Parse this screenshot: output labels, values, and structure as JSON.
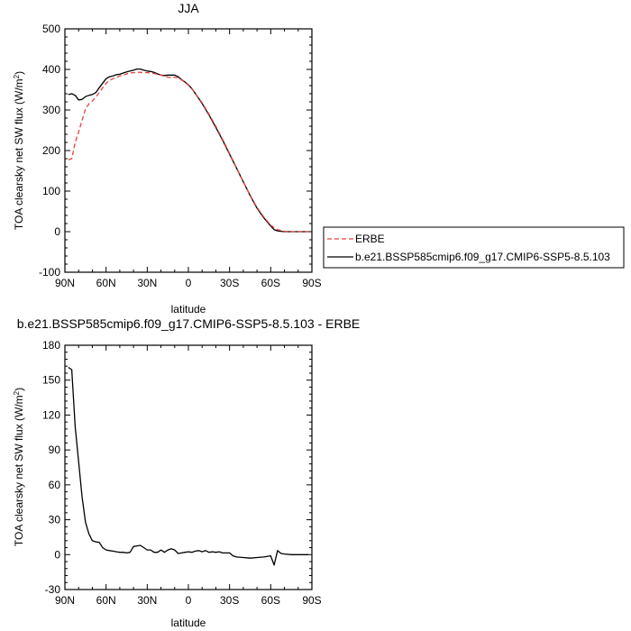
{
  "chart_data": [
    {
      "type": "line",
      "title": "JJA",
      "xlabel": "latitude",
      "ylabel": "TOA clearsky net SW flux (W/m",
      "ylabel_sup": "2",
      "ylabel_close": ")",
      "xlim": [
        90,
        -90
      ],
      "ylim": [
        -100,
        500
      ],
      "xticks": [
        90,
        60,
        30,
        0,
        -30,
        -60,
        -90
      ],
      "xtick_labels": [
        "90N",
        "60N",
        "30N",
        "0",
        "30S",
        "60S",
        "90S"
      ],
      "yticks": [
        -100,
        0,
        100,
        200,
        300,
        400,
        500
      ],
      "ytick_labels": [
        "-100",
        "0",
        "100",
        "200",
        "300",
        "400",
        "500"
      ],
      "legend": {
        "placement": "right",
        "items": [
          "ERBE",
          "b.e21.BSSP585cmip6.f09_g17.CMIP6-SSP5-8.5.103"
        ]
      },
      "series": [
        {
          "name": "ERBE",
          "color": "#e8413c",
          "dash": "dashed",
          "x": [
            87.5,
            85,
            82.5,
            80,
            77.5,
            75,
            72.5,
            70,
            67.5,
            65,
            62.5,
            60,
            57.5,
            55,
            52.5,
            50,
            47.5,
            45,
            42.5,
            40,
            37.5,
            35,
            32.5,
            30,
            27.5,
            25,
            22.5,
            20,
            17.5,
            15,
            12.5,
            10,
            7.5,
            5,
            2.5,
            0,
            -2.5,
            -5,
            -10,
            -15,
            -20,
            -25,
            -30,
            -35,
            -40,
            -45,
            -50,
            -55,
            -60,
            -62.5,
            -65,
            -67.5,
            -70,
            -75,
            -80,
            -85,
            -87.5
          ],
          "y": [
            177,
            180,
            220,
            245,
            275,
            302,
            315,
            322,
            332,
            343,
            355,
            366,
            373,
            377,
            380,
            384,
            386,
            389,
            391,
            392,
            393,
            393,
            392,
            392,
            391,
            390,
            388,
            386,
            383,
            381,
            380,
            381,
            379,
            374,
            368,
            361,
            352,
            341,
            318,
            290,
            260,
            227,
            193,
            158,
            123,
            90,
            60,
            36,
            16,
            10,
            5,
            3,
            1,
            0,
            0,
            0,
            0
          ]
        },
        {
          "name": "b.e21.BSSP585cmip6.f09_g17.CMIP6-SSP5-8.5.103",
          "color": "#000000",
          "dash": "solid",
          "x": [
            87.5,
            85,
            82.5,
            80,
            77.5,
            75,
            72.5,
            70,
            67.5,
            65,
            62.5,
            60,
            57.5,
            55,
            52.5,
            50,
            47.5,
            45,
            42.5,
            40,
            37.5,
            35,
            32.5,
            30,
            27.5,
            25,
            22.5,
            20,
            17.5,
            15,
            12.5,
            10,
            7.5,
            5,
            2.5,
            0,
            -2.5,
            -5,
            -10,
            -15,
            -20,
            -25,
            -30,
            -35,
            -40,
            -45,
            -50,
            -55,
            -60,
            -62.5,
            -65,
            -67.5,
            -70,
            -75,
            -80,
            -85,
            -87.5
          ],
          "y": [
            338,
            340,
            336,
            325,
            326,
            333,
            336,
            338,
            343,
            355,
            366,
            377,
            382,
            384,
            387,
            388,
            391,
            394,
            396,
            398,
            401,
            401,
            398,
            396,
            395,
            393,
            389,
            386,
            385,
            386,
            386,
            386,
            382,
            375,
            369,
            362,
            353,
            341,
            316,
            288,
            257,
            225,
            191,
            157,
            123,
            89,
            58,
            34,
            14,
            5,
            2,
            1,
            0,
            0,
            0,
            0,
            0
          ]
        }
      ]
    },
    {
      "type": "line",
      "title": "b.e21.BSSP585cmip6.f09_g17.CMIP6-SSP5-8.5.103 - ERBE",
      "xlabel": "latitude",
      "ylabel": "TOA clearsky net SW flux (W/m",
      "ylabel_sup": "2",
      "ylabel_close": ")",
      "xlim": [
        90,
        -90
      ],
      "ylim": [
        -30,
        180
      ],
      "xticks": [
        90,
        60,
        30,
        0,
        -30,
        -60,
        -90
      ],
      "xtick_labels": [
        "90N",
        "60N",
        "30N",
        "0",
        "30S",
        "60S",
        "90S"
      ],
      "yticks": [
        -30,
        0,
        30,
        60,
        90,
        120,
        150,
        180
      ],
      "ytick_labels": [
        "-30",
        "0",
        "30",
        "60",
        "90",
        "120",
        "150",
        "180"
      ],
      "series": [
        {
          "color": "#000000",
          "dash": "solid",
          "x": [
            87.5,
            85,
            82.5,
            80,
            77.5,
            75,
            72.5,
            70,
            67.5,
            65,
            62.5,
            60,
            57.5,
            55,
            52.5,
            50,
            47.5,
            45,
            42.5,
            40,
            37.5,
            35,
            32.5,
            30,
            27.5,
            25,
            22.5,
            20,
            17.5,
            15,
            12.5,
            10,
            7.5,
            5,
            2.5,
            0,
            -2.5,
            -5,
            -7.5,
            -10,
            -12.5,
            -15,
            -17.5,
            -20,
            -22.5,
            -25,
            -27.5,
            -30,
            -32.5,
            -35,
            -40,
            -45,
            -50,
            -55,
            -60,
            -62.5,
            -65,
            -67.5,
            -70,
            -75,
            -80,
            -85,
            -87.5
          ],
          "y": [
            161,
            159,
            110,
            80,
            50,
            28,
            18,
            12,
            11,
            10.5,
            6,
            4,
            3.5,
            3,
            2.5,
            2,
            2,
            1.5,
            2,
            7,
            7.5,
            8,
            6,
            4,
            4,
            2,
            2,
            4,
            2,
            4,
            5,
            4,
            1,
            1.5,
            2,
            2.5,
            2,
            3,
            3.5,
            2.5,
            3.5,
            2,
            2.5,
            2,
            2.5,
            1.5,
            1.5,
            1.5,
            -1,
            -2,
            -2.5,
            -3,
            -2.5,
            -2,
            -1,
            -9,
            3.5,
            1,
            0.5,
            0,
            0,
            0,
            0
          ]
        }
      ]
    }
  ]
}
